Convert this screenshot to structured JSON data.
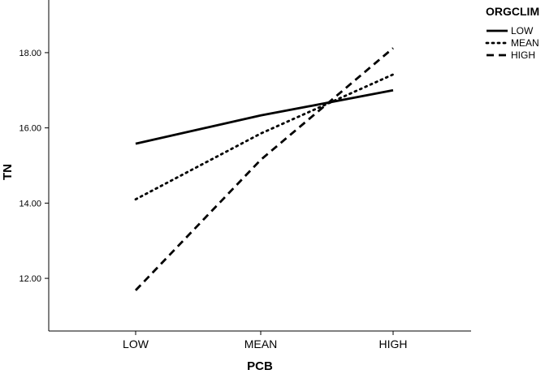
{
  "chart_data": {
    "type": "line",
    "xlabel": "PCB",
    "ylabel": "TN",
    "categories": [
      "LOW",
      "MEAN",
      "HIGH"
    ],
    "y_ticks": [
      "12.00",
      "14.00",
      "16.00",
      "18.00"
    ],
    "ylim": [
      10.6,
      19.4
    ],
    "grid": false,
    "legend": {
      "title": "ORGCLIM",
      "placement": "top-right"
    },
    "series": [
      {
        "name": "LOW",
        "style": "solid",
        "values": [
          15.58,
          16.33,
          17.0
        ]
      },
      {
        "name": "MEAN",
        "style": "dotted",
        "values": [
          14.1,
          15.85,
          17.42
        ]
      },
      {
        "name": "HIGH",
        "style": "dashed",
        "values": [
          11.68,
          15.15,
          18.12
        ]
      }
    ],
    "colors": {
      "line": "#000000",
      "background": "#ffffff"
    }
  }
}
